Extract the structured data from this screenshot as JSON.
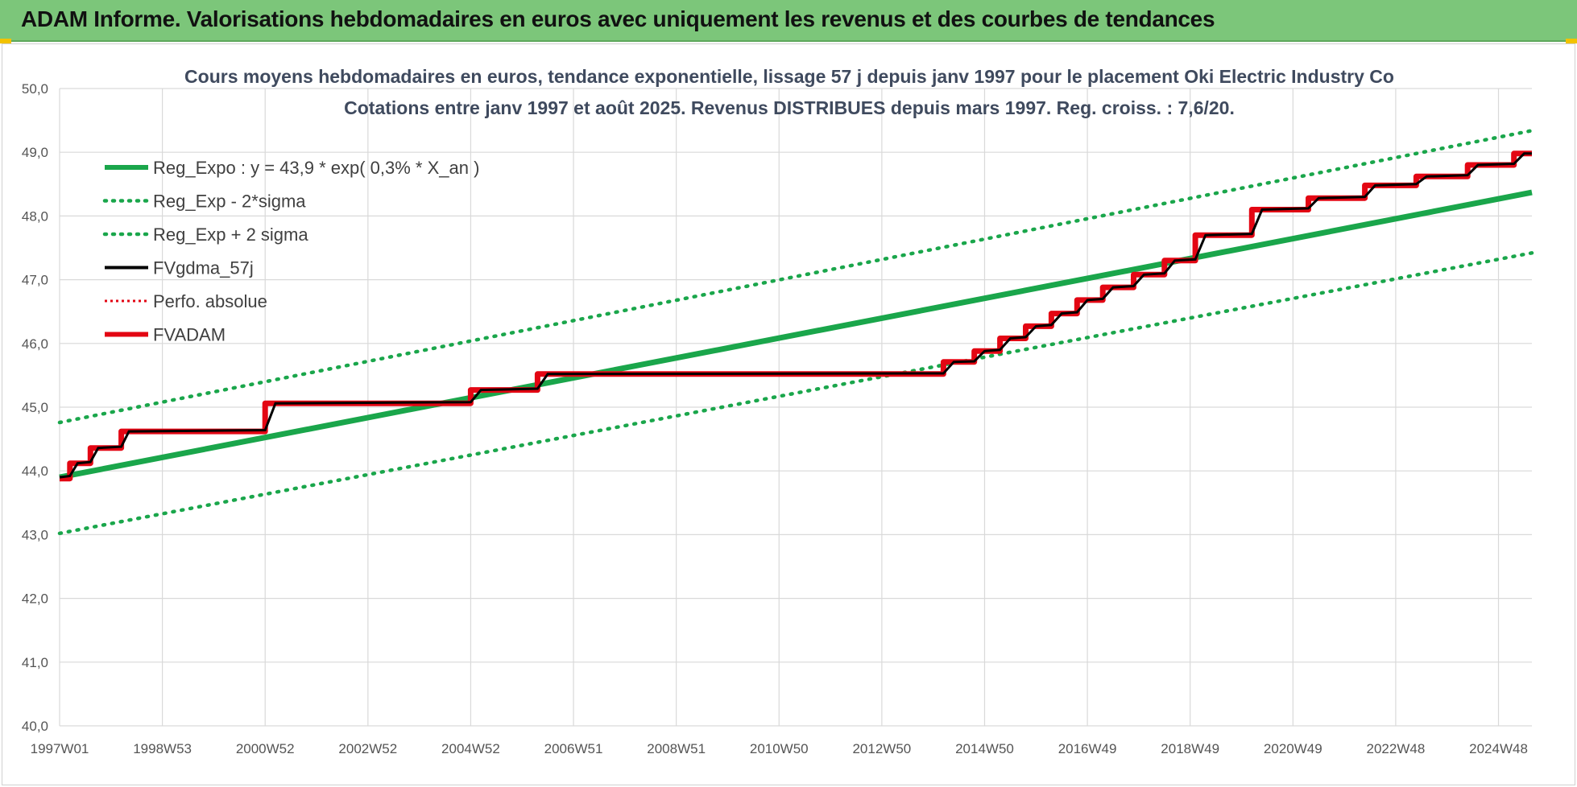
{
  "header": {
    "title": "ADAM Informe. Valorisations hebdomadaires en euros avec uniquement les revenus et des courbes de tendances"
  },
  "colors": {
    "header_bg": "#7cc67a",
    "trend": "#1aa64b",
    "fv_black": "#000000",
    "fv_adam": "#e30613",
    "perfo": "#e30613"
  },
  "chart_data": {
    "type": "line",
    "title_line1": "Cours moyens hebdomadaires en euros, tendance exponentielle, lissage 57 j depuis janv 1997 pour le placement Oki Electric Industry Co",
    "title_line2": "Cotations entre janv 1997 et août 2025.  Revenus DISTRIBUES depuis mars 1997. Reg. croiss. : 7,6/20.",
    "ylim": [
      40.0,
      50.0
    ],
    "y_ticks": [
      "40,0",
      "41,0",
      "42,0",
      "43,0",
      "44,0",
      "45,0",
      "46,0",
      "47,0",
      "48,0",
      "49,0",
      "50,0"
    ],
    "xlim": [
      1997.0,
      2025.65
    ],
    "x_ticks": [
      {
        "label": "1997W01",
        "x": 1997.0
      },
      {
        "label": "1998W53",
        "x": 1999.0
      },
      {
        "label": "2000W52",
        "x": 2001.0
      },
      {
        "label": "2002W52",
        "x": 2003.0
      },
      {
        "label": "2004W52",
        "x": 2005.0
      },
      {
        "label": "2006W51",
        "x": 2007.0
      },
      {
        "label": "2008W51",
        "x": 2009.0
      },
      {
        "label": "2010W50",
        "x": 2011.0
      },
      {
        "label": "2012W50",
        "x": 2013.0
      },
      {
        "label": "2014W50",
        "x": 2015.0
      },
      {
        "label": "2016W49",
        "x": 2017.0
      },
      {
        "label": "2018W49",
        "x": 2019.0
      },
      {
        "label": "2020W49",
        "x": 2021.0
      },
      {
        "label": "2022W48",
        "x": 2023.0
      },
      {
        "label": "2024W48",
        "x": 2025.0
      }
    ],
    "legend": [
      {
        "name": "Reg_Expo : y = 43,9 * exp( 0,3% *  X_an )",
        "style": "solid-green"
      },
      {
        "name": "Reg_Exp - 2*sigma",
        "style": "dotted-green"
      },
      {
        "name": "Reg_Exp + 2 sigma",
        "style": "dotted-green"
      },
      {
        "name": "FVgdma_57j",
        "style": "solid-black"
      },
      {
        "name": "Perfo. absolue",
        "style": "dotted-red"
      },
      {
        "name": "FVADAM",
        "style": "solid-red"
      }
    ],
    "series": [
      {
        "name": "Reg_Expo : y = 43,9 * exp( 0,3% *  X_an )",
        "x": [
          1997.0,
          2025.65
        ],
        "values": [
          43.9,
          48.37
        ]
      },
      {
        "name": "Reg_Exp - 2*sigma",
        "x": [
          1997.0,
          2025.65
        ],
        "values": [
          43.02,
          47.42
        ]
      },
      {
        "name": "Reg_Exp + 2 sigma",
        "x": [
          1997.0,
          2025.65
        ],
        "values": [
          44.76,
          49.34
        ]
      },
      {
        "name": "FVADAM",
        "x": [
          1997.0,
          1997.2,
          1997.2,
          1997.6,
          1997.6,
          1998.2,
          1998.2,
          2001.0,
          2001.0,
          2005.0,
          2005.0,
          2006.3,
          2006.3,
          2014.2,
          2014.2,
          2014.8,
          2014.8,
          2015.3,
          2015.3,
          2015.8,
          2015.8,
          2016.3,
          2016.3,
          2016.8,
          2016.8,
          2017.3,
          2017.3,
          2017.9,
          2017.9,
          2018.5,
          2018.5,
          2019.1,
          2019.1,
          2020.2,
          2020.2,
          2021.3,
          2021.3,
          2022.4,
          2022.4,
          2023.4,
          2023.4,
          2024.4,
          2024.4,
          2025.3,
          2025.3,
          2025.65
        ],
        "values": [
          43.88,
          43.88,
          44.12,
          44.12,
          44.36,
          44.36,
          44.62,
          44.62,
          45.06,
          45.06,
          45.27,
          45.27,
          45.52,
          45.52,
          45.71,
          45.71,
          45.88,
          45.88,
          46.08,
          46.08,
          46.27,
          46.27,
          46.47,
          46.47,
          46.68,
          46.68,
          46.88,
          46.88,
          47.08,
          47.08,
          47.3,
          47.3,
          47.7,
          47.7,
          48.1,
          48.1,
          48.28,
          48.28,
          48.48,
          48.48,
          48.62,
          48.62,
          48.8,
          48.8,
          48.98,
          48.98
        ]
      },
      {
        "name": "FVgdma_57j",
        "x": [
          1997.0,
          1997.2,
          1997.35,
          1997.6,
          1997.75,
          1998.2,
          1998.35,
          2001.0,
          2001.2,
          2005.0,
          2005.2,
          2006.3,
          2006.5,
          2014.2,
          2014.4,
          2014.8,
          2015.0,
          2015.3,
          2015.5,
          2015.8,
          2016.0,
          2016.3,
          2016.5,
          2016.8,
          2017.0,
          2017.3,
          2017.5,
          2017.9,
          2018.1,
          2018.5,
          2018.7,
          2019.1,
          2019.3,
          2020.2,
          2020.4,
          2021.3,
          2021.5,
          2022.4,
          2022.6,
          2023.4,
          2023.6,
          2024.4,
          2024.6,
          2025.3,
          2025.5,
          2025.65
        ],
        "values": [
          43.9,
          43.92,
          44.12,
          44.14,
          44.36,
          44.38,
          44.62,
          44.64,
          45.06,
          45.08,
          45.27,
          45.29,
          45.52,
          45.53,
          45.71,
          45.72,
          45.88,
          45.9,
          46.08,
          46.1,
          46.27,
          46.29,
          46.47,
          46.49,
          46.68,
          46.7,
          46.88,
          46.9,
          47.08,
          47.1,
          47.3,
          47.32,
          47.7,
          47.72,
          48.1,
          48.12,
          48.28,
          48.3,
          48.48,
          48.5,
          48.62,
          48.64,
          48.8,
          48.82,
          48.98,
          48.98
        ]
      }
    ]
  }
}
